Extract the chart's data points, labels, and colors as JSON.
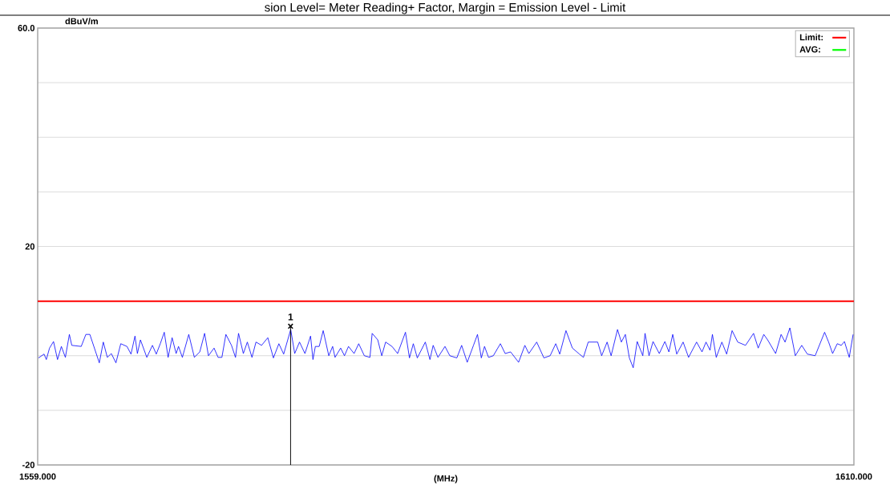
{
  "chart_data": {
    "type": "line",
    "title": "sion Level= Meter Reading+ Factor, Margin = Emission Level - Limit",
    "xlabel": "(MHz)",
    "ylabel": "dBuV/m",
    "xlim": [
      1559,
      1610
    ],
    "ylim": [
      -20,
      60
    ],
    "xticks": [
      {
        "value": 1559,
        "label": "1559.000"
      },
      {
        "value": 1610,
        "label": "1610.000"
      }
    ],
    "yticks": [
      -20,
      {
        "value": -10,
        "label": null
      },
      {
        "value": 0,
        "label": null
      },
      {
        "value": 10,
        "label": null
      },
      20,
      {
        "value": 30,
        "label": null
      },
      {
        "value": 40,
        "label": null
      },
      {
        "value": 50,
        "label": null
      },
      {
        "value": 60,
        "label": "60.0"
      }
    ],
    "grid": "y",
    "legend": "top right",
    "series": [
      {
        "name": "Limit:",
        "color": "#ff0000",
        "x": [
          1559,
          1610
        ],
        "values": [
          10,
          10
        ]
      },
      {
        "name": "AVG:",
        "color": "#00ff00"
      },
      {
        "color": "#0000ff",
        "x": [
          1559.05,
          1559.4,
          1559.54,
          1559.74,
          1559.99,
          1560.24,
          1560.48,
          1560.73,
          1560.98,
          1561.13,
          1561.72,
          1562.01,
          1562.26,
          1562.85,
          1563.1,
          1563.35,
          1563.6,
          1563.89,
          1564.19,
          1564.58,
          1564.83,
          1565.08,
          1565.23,
          1565.42,
          1565.82,
          1566.17,
          1566.41,
          1566.66,
          1566.91,
          1567.15,
          1567.4,
          1567.65,
          1567.8,
          1568.04,
          1568.44,
          1568.79,
          1569.13,
          1569.43,
          1569.67,
          1570.02,
          1570.27,
          1570.51,
          1570.76,
          1571.11,
          1571.36,
          1571.55,
          1571.85,
          1572.1,
          1572.39,
          1572.64,
          1572.99,
          1573.38,
          1573.73,
          1574.07,
          1574.37,
          1574.81,
          1575.06,
          1575.36,
          1575.7,
          1576.05,
          1576.2,
          1576.35,
          1576.59,
          1576.84,
          1577.19,
          1577.43,
          1577.58,
          1577.93,
          1578.17,
          1578.42,
          1578.77,
          1579.06,
          1579.41,
          1579.76,
          1579.9,
          1580.25,
          1580.5,
          1580.74,
          1581.14,
          1581.49,
          1581.98,
          1582.23,
          1582.47,
          1582.72,
          1583.22,
          1583.51,
          1583.71,
          1584.01,
          1584.45,
          1584.75,
          1585.19,
          1585.49,
          1585.84,
          1586.23,
          1586.48,
          1586.72,
          1586.92,
          1587.17,
          1587.47,
          1587.91,
          1588.21,
          1588.55,
          1589.05,
          1589.44,
          1589.69,
          1590.18,
          1590.63,
          1591.02,
          1591.37,
          1591.62,
          1592.01,
          1592.41,
          1592.85,
          1593.1,
          1593.4,
          1593.99,
          1594.24,
          1594.58,
          1594.83,
          1595.23,
          1595.47,
          1595.72,
          1595.97,
          1596.21,
          1596.46,
          1596.81,
          1596.95,
          1597.2,
          1597.45,
          1597.84,
          1598.19,
          1598.44,
          1598.68,
          1598.93,
          1599.33,
          1599.67,
          1600.17,
          1600.51,
          1600.76,
          1601.01,
          1601.16,
          1601.4,
          1601.75,
          1602.05,
          1602.39,
          1602.74,
          1603.23,
          1603.73,
          1604.02,
          1604.37,
          1604.61,
          1605.11,
          1605.45,
          1605.7,
          1606.0,
          1606.34,
          1606.74,
          1607.09,
          1607.58,
          1608.17,
          1608.42,
          1608.67,
          1608.96,
          1609.21,
          1609.41,
          1609.71,
          1609.95
        ],
        "values": [
          -0.4,
          0.3,
          -0.7,
          1.4,
          2.6,
          -0.7,
          1.7,
          -0.3,
          3.9,
          1.9,
          1.7,
          3.9,
          3.9,
          -1.3,
          2.5,
          -0.3,
          0.4,
          -1.3,
          2.2,
          1.7,
          0.3,
          3.6,
          0.4,
          2.9,
          -0.3,
          1.9,
          0.3,
          2.2,
          4.3,
          -0.3,
          3.3,
          0.4,
          1.7,
          -0.3,
          3.9,
          -0.3,
          0.7,
          4.1,
          0,
          1.4,
          -0.3,
          -0.3,
          3.9,
          1.9,
          -0.3,
          4.1,
          0.4,
          2.5,
          -0.3,
          2.5,
          1.9,
          3.3,
          -0.4,
          2.2,
          0.3,
          4.8,
          0.4,
          2.5,
          0.4,
          3.6,
          -0.7,
          1.7,
          1.7,
          4.6,
          0,
          1.7,
          -0.3,
          1.4,
          0,
          1.7,
          0.4,
          2.2,
          0,
          -0.3,
          4.1,
          2.9,
          0,
          2.5,
          1.7,
          0.4,
          4.3,
          -0.4,
          2.2,
          -0.4,
          2.5,
          -0.7,
          1.9,
          -0.3,
          1.7,
          0,
          -0.4,
          1.9,
          -1.2,
          1.9,
          3.9,
          -0.4,
          1.7,
          -0.3,
          0,
          2.2,
          0.4,
          0.7,
          -1.2,
          1.9,
          0.4,
          2.5,
          -0.4,
          0,
          2.2,
          0.3,
          4.6,
          1.4,
          0.3,
          -0.3,
          2.5,
          2.5,
          0,
          2.5,
          0,
          4.8,
          2.5,
          3.9,
          -0.4,
          -2.2,
          2.6,
          0,
          4.1,
          0,
          2.6,
          0.4,
          2.6,
          0.7,
          3.9,
          0.3,
          2.5,
          -0.3,
          2.5,
          0.7,
          2.5,
          1.0,
          3.9,
          -0.3,
          2.5,
          0.3,
          4.6,
          2.5,
          1.9,
          4.1,
          1.4,
          3.9,
          2.9,
          0.4,
          3.9,
          2.5,
          5.1,
          0,
          1.9,
          0.3,
          0,
          4.3,
          2.5,
          0.4,
          2.2,
          1.9,
          2.6,
          -0.3,
          3.9
        ]
      },
      {
        "type": "scatter",
        "marker": "cross",
        "color": "#000000",
        "x": [
          1574.8
        ],
        "values": [
          5.4
        ]
      }
    ],
    "ref_lines": [
      {
        "axis": "x",
        "value": 1574.8,
        "color": "#000000"
      }
    ],
    "annotations": [
      {
        "text": "1",
        "x": 1574.8,
        "y": 5.4
      }
    ]
  }
}
